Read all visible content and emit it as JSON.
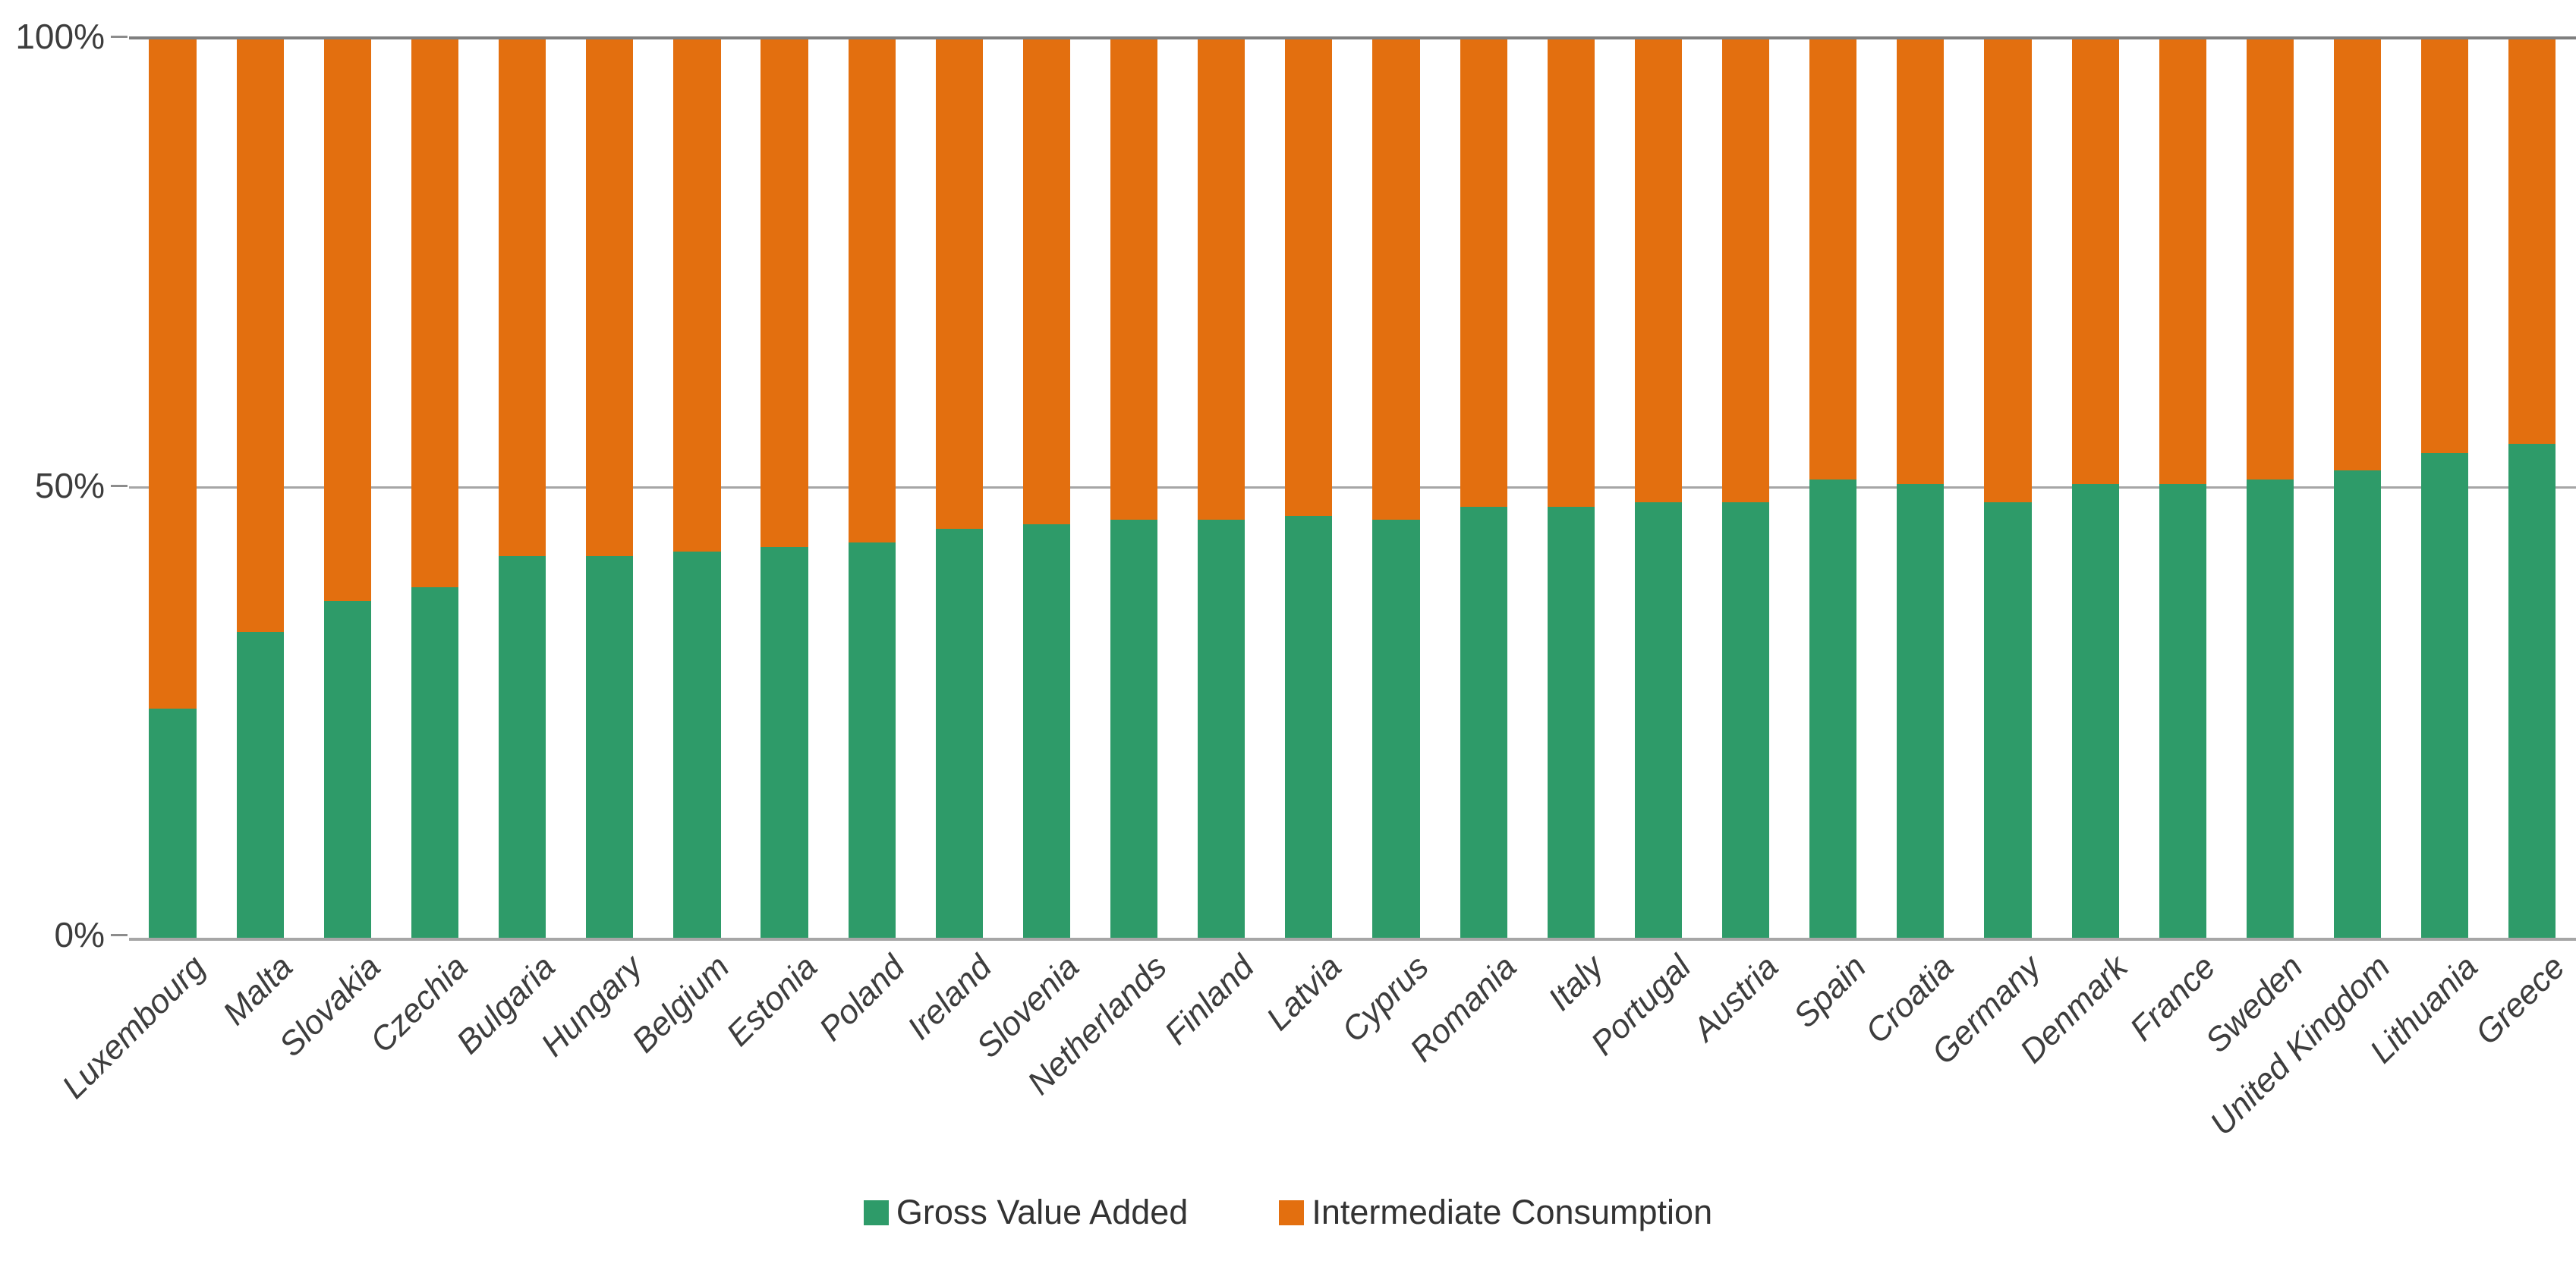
{
  "chart_data": {
    "type": "bar",
    "stacked": true,
    "orientation": "vertical",
    "unit": "%",
    "stack_total": 100,
    "title": "",
    "xlabel": "",
    "ylabel": "",
    "categories": [
      "Luxembourg",
      "Malta",
      "Slovakia",
      "Czechia",
      "Bulgaria",
      "Hungary",
      "Belgium",
      "Estonia",
      "Poland",
      "Ireland",
      "Slovenia",
      "Netherlands",
      "Finland",
      "Latvia",
      "Cyprus",
      "Romania",
      "Italy",
      "Portugal",
      "Austria",
      "Spain",
      "Croatia",
      "Germany",
      "Denmark",
      "France",
      "Sweden",
      "United Kingdom",
      "Lithuania",
      "Greece"
    ],
    "series": [
      {
        "name": "Gross Value Added",
        "color": "#2E9B69",
        "values": [
          25.5,
          34,
          37.5,
          39,
          42.5,
          42.5,
          43,
          43.5,
          44,
          45.5,
          46,
          46.5,
          46.5,
          47,
          46.5,
          48,
          48,
          48.5,
          48.5,
          51,
          50.5,
          48.5,
          50.5,
          50.5,
          51,
          52,
          54,
          55
        ]
      },
      {
        "name": "Intermediate Consumption",
        "color": "#E36F0F",
        "values": [
          74.5,
          66,
          62.5,
          61,
          57.5,
          57.5,
          57,
          56.5,
          56,
          54.5,
          54,
          53.5,
          53.5,
          53,
          53.5,
          52,
          52,
          51.5,
          51.5,
          49,
          49.5,
          51.5,
          49.5,
          49.5,
          49,
          48,
          46,
          45
        ]
      }
    ],
    "y_axis": {
      "min": 0,
      "max": 100,
      "ticks": [
        "0%",
        "50%",
        "100%"
      ],
      "gridlines_at": [
        50
      ]
    },
    "legend_position": "bottom",
    "grid": true
  },
  "colors": {
    "gridline": "#A6A6A6",
    "top_line": "#7F7F7F",
    "tick_mark": "#8C8C8C",
    "axis_text": "#3d3d3d",
    "legend_text": "#333333",
    "background": "#ffffff"
  }
}
